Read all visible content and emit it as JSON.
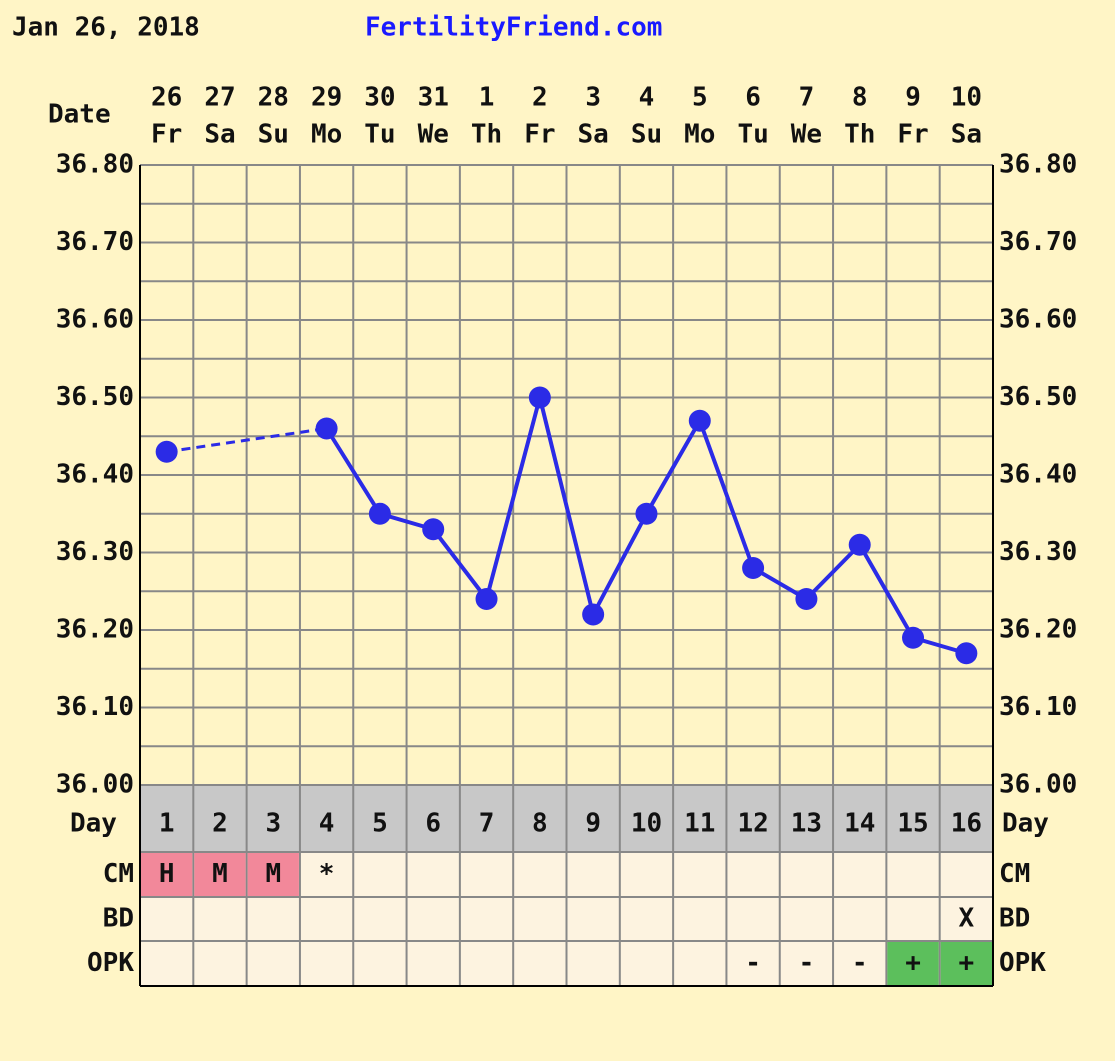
{
  "chart_data": {
    "type": "line",
    "title": "Jan 26, 2018",
    "subtitle": "FertilityFriend.com",
    "date_label": "Date",
    "dates": [
      "26",
      "27",
      "28",
      "29",
      "30",
      "31",
      "1",
      "2",
      "3",
      "4",
      "5",
      "6",
      "7",
      "8",
      "9",
      "10"
    ],
    "weekdays": [
      "Fr",
      "Sa",
      "Su",
      "Mo",
      "Tu",
      "We",
      "Th",
      "Fr",
      "Sa",
      "Su",
      "Mo",
      "Tu",
      "We",
      "Th",
      "Fr",
      "Sa"
    ],
    "day_label": "Day",
    "categories": [
      "1",
      "2",
      "3",
      "4",
      "5",
      "6",
      "7",
      "8",
      "9",
      "10",
      "11",
      "12",
      "13",
      "14",
      "15",
      "16"
    ],
    "values": [
      36.43,
      null,
      null,
      36.46,
      36.35,
      36.33,
      36.24,
      36.5,
      36.22,
      36.35,
      36.47,
      36.28,
      36.24,
      36.31,
      36.19,
      36.17
    ],
    "color": "#2b2be6",
    "ylim": [
      36.0,
      36.8
    ],
    "yticks": [
      {
        "value": 36.0,
        "label": "36.00"
      },
      {
        "value": 36.1,
        "label": "36.10"
      },
      {
        "value": 36.2,
        "label": "36.20"
      },
      {
        "value": 36.3,
        "label": "36.30"
      },
      {
        "value": 36.4,
        "label": "36.40"
      },
      {
        "value": 36.5,
        "label": "36.50"
      },
      {
        "value": 36.6,
        "label": "36.60"
      },
      {
        "value": 36.7,
        "label": "36.70"
      },
      {
        "value": 36.8,
        "label": "36.80"
      }
    ],
    "minor_yticks": [
      36.05,
      36.15,
      36.25,
      36.35,
      36.45,
      36.55,
      36.65,
      36.75
    ],
    "grid": true,
    "rows": [
      {
        "label": "CM",
        "values": [
          "H",
          "M",
          "M",
          "*",
          null,
          null,
          null,
          null,
          null,
          null,
          null,
          null,
          null,
          null,
          null,
          null
        ],
        "colors": [
          "#f2889a",
          "#f2889a",
          "#f2889a",
          null,
          null,
          null,
          null,
          null,
          null,
          null,
          null,
          null,
          null,
          null,
          null,
          null
        ]
      },
      {
        "label": "BD",
        "values": [
          null,
          null,
          null,
          null,
          null,
          null,
          null,
          null,
          null,
          null,
          null,
          null,
          null,
          null,
          null,
          "X"
        ],
        "colors": [
          null,
          null,
          null,
          null,
          null,
          null,
          null,
          null,
          null,
          null,
          null,
          null,
          null,
          null,
          null,
          null
        ]
      },
      {
        "label": "OPK",
        "values": [
          null,
          null,
          null,
          null,
          null,
          null,
          null,
          null,
          null,
          null,
          null,
          "-",
          "-",
          "-",
          "+",
          "+"
        ],
        "colors": [
          null,
          null,
          null,
          null,
          null,
          null,
          null,
          null,
          null,
          null,
          null,
          null,
          null,
          null,
          "#5cbf5c",
          "#5cbf5c"
        ]
      }
    ]
  }
}
